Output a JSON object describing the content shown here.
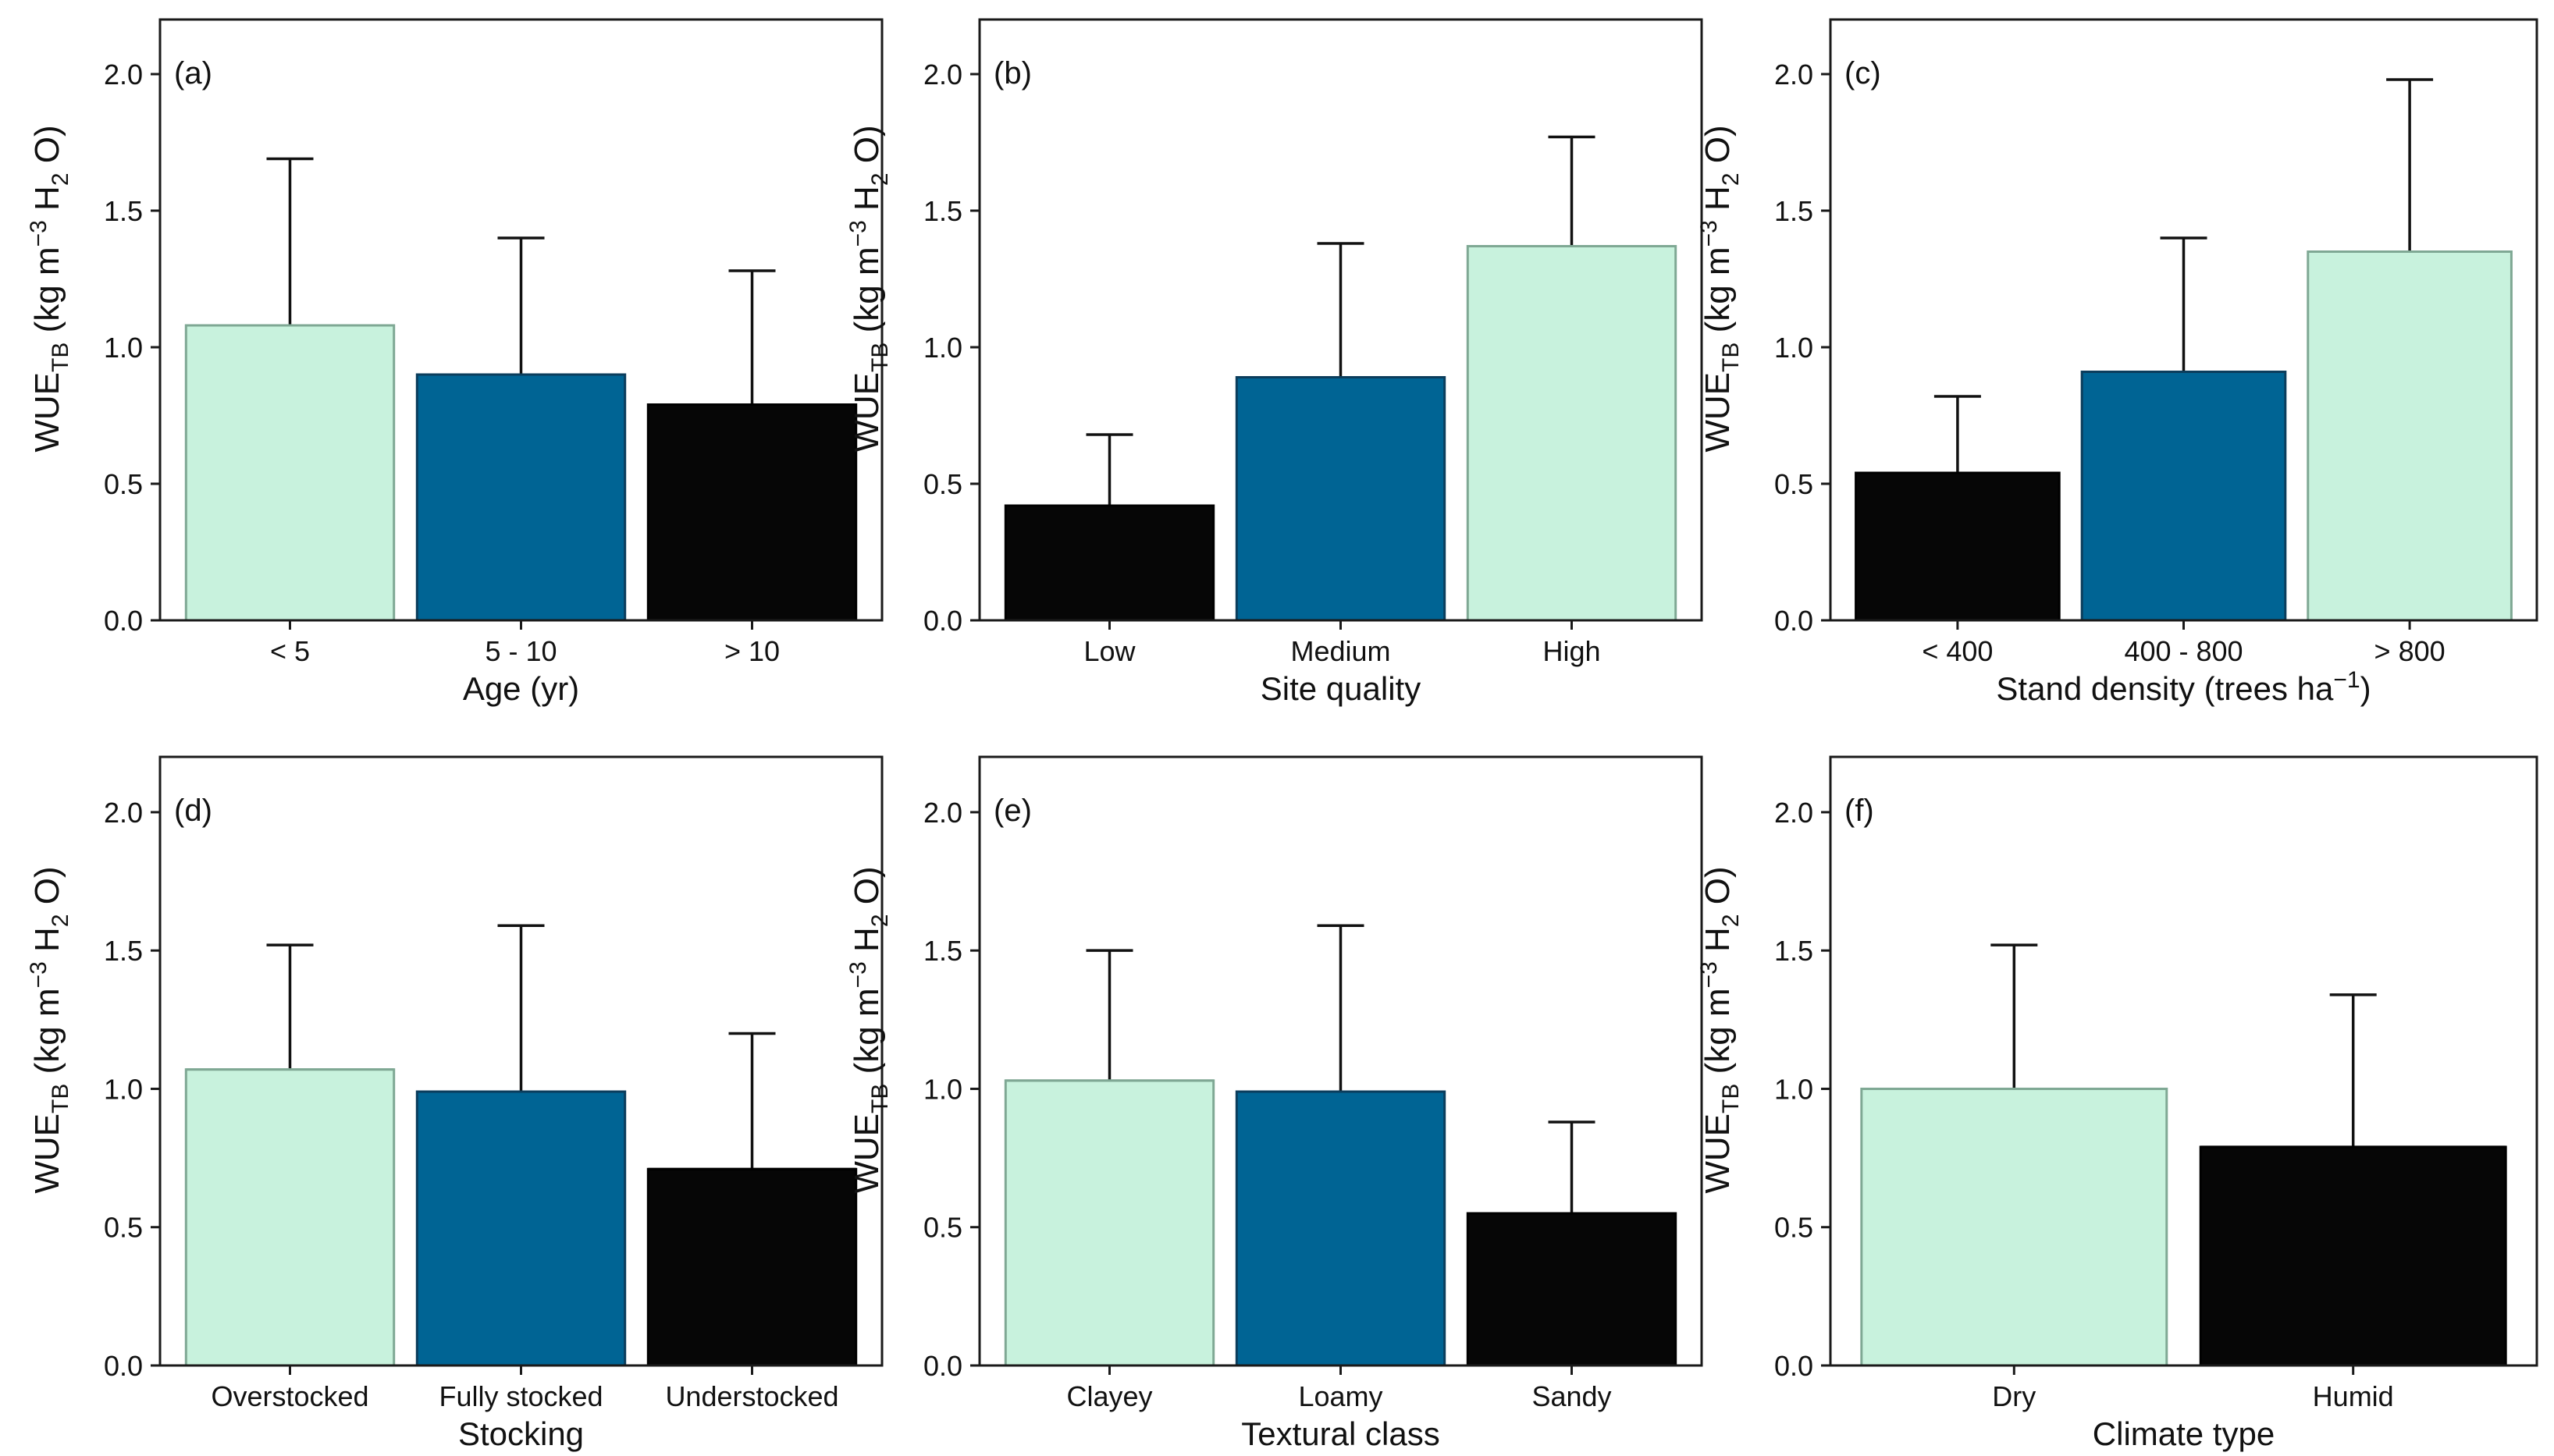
{
  "figure": {
    "colors": {
      "light": "#c8f2dd",
      "light_edge": "#7fa894",
      "blue": "#006494",
      "black": "#060606"
    },
    "y_axis_label": {
      "base": "WUE",
      "sub": "TB",
      "unit_open": " (kg m",
      "unit_exp": "−3",
      "unit_mid": " H",
      "unit_sub": "2",
      "unit_close": " O)"
    }
  },
  "chart_data": [
    {
      "type": "bar",
      "panel": "(a)",
      "title": "",
      "xlabel": "Age (yr)",
      "ylabel": "WUE_TB (kg m^-3 H2 O)",
      "ylim": [
        0,
        2.2
      ],
      "yticks": [
        0.0,
        0.5,
        1.0,
        1.5,
        2.0
      ],
      "ytick_labels": [
        "0.0",
        "0.5",
        "1.0",
        "1.5",
        "2.0"
      ],
      "categories": [
        "< 5",
        "5 - 10",
        "> 10"
      ],
      "values": [
        1.08,
        0.9,
        0.79
      ],
      "errors": [
        0.61,
        0.5,
        0.49
      ],
      "colors": [
        "light",
        "blue",
        "black"
      ]
    },
    {
      "type": "bar",
      "panel": "(b)",
      "title": "",
      "xlabel": "Site quality",
      "ylabel": "WUE_TB (kg m^-3 H2 O)",
      "ylim": [
        0,
        2.2
      ],
      "yticks": [
        0.0,
        0.5,
        1.0,
        1.5,
        2.0
      ],
      "ytick_labels": [
        "0.0",
        "0.5",
        "1.0",
        "1.5",
        "2.0"
      ],
      "categories": [
        "Low",
        "Medium",
        "High"
      ],
      "values": [
        0.42,
        0.89,
        1.37
      ],
      "errors": [
        0.26,
        0.49,
        0.4
      ],
      "colors": [
        "black",
        "blue",
        "light"
      ]
    },
    {
      "type": "bar",
      "panel": "(c)",
      "title": "",
      "xlabel": "Stand density (trees ha",
      "xlabel_sup": "−1",
      "xlabel_close": ")",
      "ylabel": "WUE_TB (kg m^-3 H2 O)",
      "ylim": [
        0,
        2.2
      ],
      "yticks": [
        0.0,
        0.5,
        1.0,
        1.5,
        2.0
      ],
      "ytick_labels": [
        "0.0",
        "0.5",
        "1.0",
        "1.5",
        "2.0"
      ],
      "categories": [
        "< 400",
        "400 - 800",
        "> 800"
      ],
      "values": [
        0.54,
        0.91,
        1.35
      ],
      "errors": [
        0.28,
        0.49,
        0.63
      ],
      "colors": [
        "black",
        "blue",
        "light"
      ]
    },
    {
      "type": "bar",
      "panel": "(d)",
      "title": "",
      "xlabel": "Stocking",
      "ylabel": "WUE_TB (kg m^-3 H2 O)",
      "ylim": [
        0,
        2.2
      ],
      "yticks": [
        0.0,
        0.5,
        1.0,
        1.5,
        2.0
      ],
      "ytick_labels": [
        "0.0",
        "0.5",
        "1.0",
        "1.5",
        "2.0"
      ],
      "categories": [
        "Overstocked",
        "Fully stocked",
        "Understocked"
      ],
      "values": [
        1.07,
        0.99,
        0.71
      ],
      "errors": [
        0.45,
        0.6,
        0.49
      ],
      "colors": [
        "light",
        "blue",
        "black"
      ]
    },
    {
      "type": "bar",
      "panel": "(e)",
      "title": "",
      "xlabel": "Textural class",
      "ylabel": "WUE_TB (kg m^-3 H2 O)",
      "ylim": [
        0,
        2.2
      ],
      "yticks": [
        0.0,
        0.5,
        1.0,
        1.5,
        2.0
      ],
      "ytick_labels": [
        "0.0",
        "0.5",
        "1.0",
        "1.5",
        "2.0"
      ],
      "categories": [
        "Clayey",
        "Loamy",
        "Sandy"
      ],
      "values": [
        1.03,
        0.99,
        0.55
      ],
      "errors": [
        0.47,
        0.6,
        0.33
      ],
      "colors": [
        "light",
        "blue",
        "black"
      ]
    },
    {
      "type": "bar",
      "panel": "(f)",
      "title": "",
      "xlabel": "Climate type",
      "ylabel": "WUE_TB (kg m^-3 H2 O)",
      "ylim": [
        0,
        2.2
      ],
      "yticks": [
        0.0,
        0.5,
        1.0,
        1.5,
        2.0
      ],
      "ytick_labels": [
        "0.0",
        "0.5",
        "1.0",
        "1.5",
        "2.0"
      ],
      "categories": [
        "Dry",
        "Humid"
      ],
      "values": [
        1.0,
        0.79
      ],
      "errors": [
        0.52,
        0.55
      ],
      "colors": [
        "light",
        "black"
      ]
    }
  ]
}
